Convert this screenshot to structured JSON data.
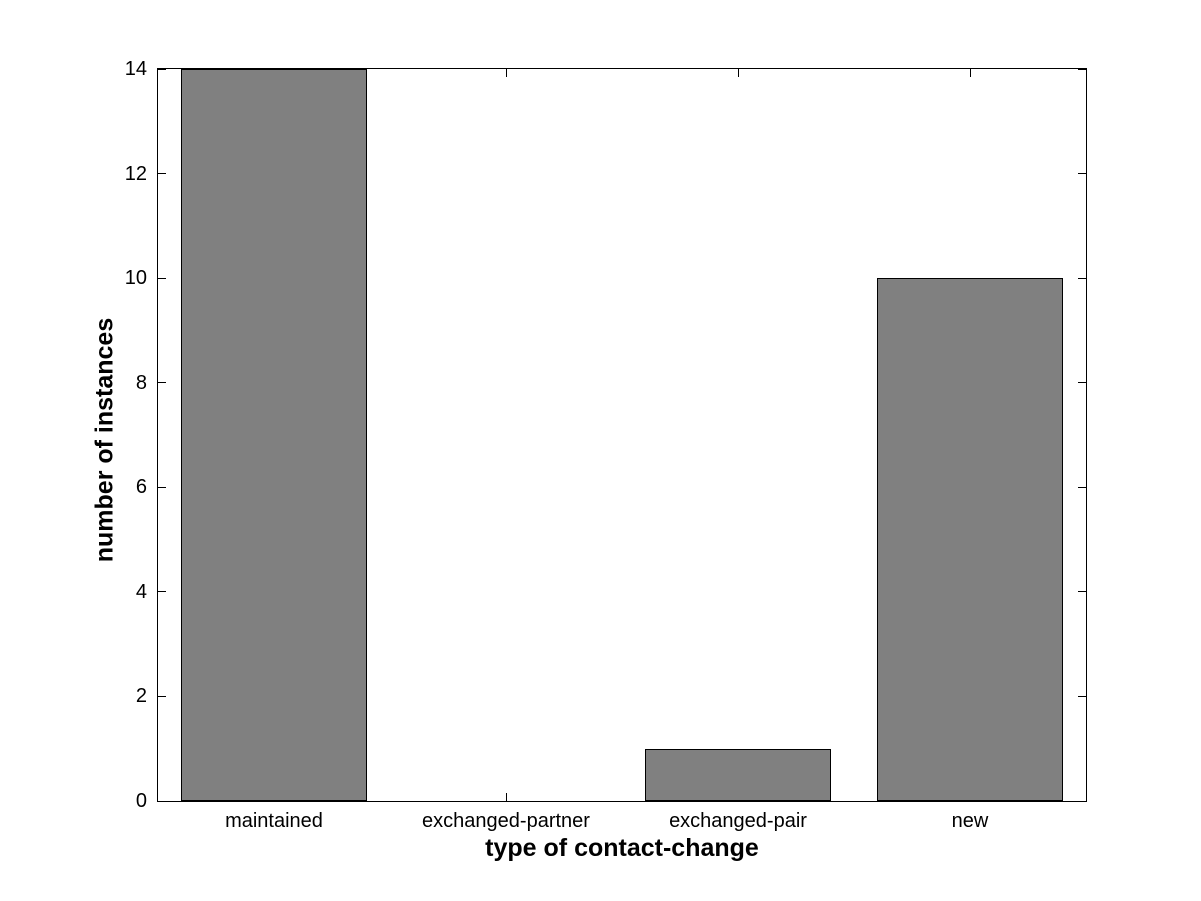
{
  "chart_data": {
    "type": "bar",
    "title": "",
    "xlabel": "type of contact-change",
    "ylabel": "number of instances",
    "categories": [
      "maintained",
      "exchanged-partner",
      "exchanged-pair",
      "new"
    ],
    "values": [
      14,
      0,
      1,
      10
    ],
    "ylim": [
      0,
      14
    ],
    "yticks": [
      0,
      2,
      4,
      6,
      8,
      10,
      12,
      14
    ],
    "bar_width_fraction": 0.8,
    "bar_color": "#808080",
    "bar_edge_color": "#000000",
    "axis_color": "#000000",
    "background_color": "#ffffff",
    "grid": false,
    "legend_position": "none",
    "tick_direction": "in"
  }
}
